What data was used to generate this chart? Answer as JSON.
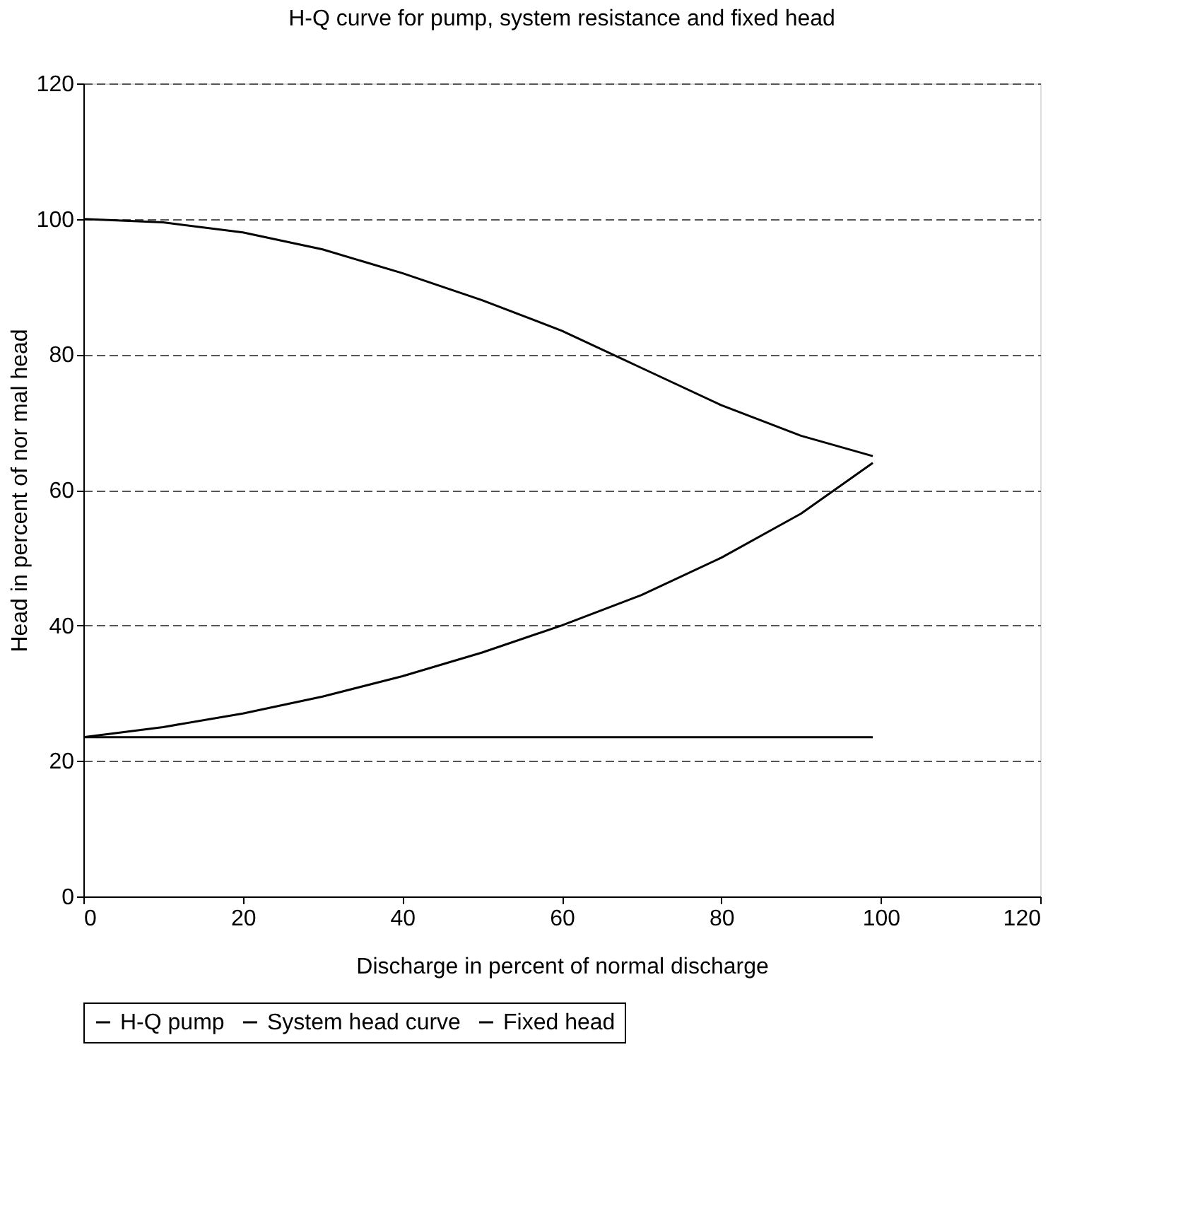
{
  "chart_data": {
    "type": "line",
    "title": "H-Q curve for pump, system resistance and fixed head",
    "xlabel": "Discharge in percent of normal discharge",
    "ylabel": "Head in percent of nor mal head",
    "xlim": [
      0,
      120
    ],
    "xticks": [
      0,
      20,
      40,
      60,
      80,
      100,
      120
    ],
    "ylim": [
      0,
      120
    ],
    "yticks": [
      0,
      20,
      40,
      60,
      80,
      100,
      120
    ],
    "grid": "y",
    "legend": "bottom",
    "marker": "none",
    "line_style": "solid",
    "series": [
      {
        "name": "H-Q pump",
        "color": "#000000",
        "x": [
          0,
          10,
          20,
          30,
          40,
          50,
          60,
          70,
          80,
          90,
          99
        ],
        "values": [
          100,
          99.5,
          98,
          95.5,
          92,
          88,
          83.5,
          78,
          72.5,
          68,
          65
        ]
      },
      {
        "name": "System head curve",
        "color": "#000000",
        "x": [
          0,
          10,
          20,
          30,
          40,
          50,
          60,
          70,
          80,
          90,
          99
        ],
        "values": [
          23.5,
          25,
          27,
          29.5,
          32.5,
          36,
          40,
          44.5,
          50,
          56.5,
          64
        ]
      },
      {
        "name": "Fixed head",
        "color": "#000000",
        "x": [
          0,
          99
        ],
        "values": [
          23.5,
          23.5
        ]
      }
    ]
  }
}
